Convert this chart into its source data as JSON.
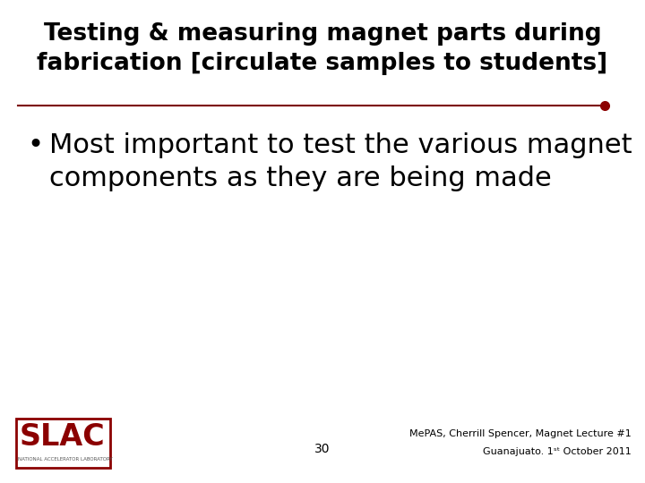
{
  "title_line1": "Testing & measuring magnet parts during",
  "title_line2": "fabrication [circulate samples to students]",
  "bullet_line1": "Most important to test the various magnet",
  "bullet_line2": "components as they are being made",
  "page_number": "30",
  "footer_right_line1": "MePAS, Cherrill Spencer, Magnet Lecture #1",
  "footer_right_line2": "Guanajuato. 1ˢᵗ October 2011",
  "title_color": "#000000",
  "bullet_color": "#000000",
  "separator_color": "#7B0000",
  "dot_color": "#8B0000",
  "background_color": "#ffffff",
  "slac_color": "#8B0000",
  "slac_sub": "NATIONAL ACCELERATOR LABORATORY",
  "title_fontsize": 19,
  "bullet_fontsize": 22,
  "footer_fontsize": 8
}
